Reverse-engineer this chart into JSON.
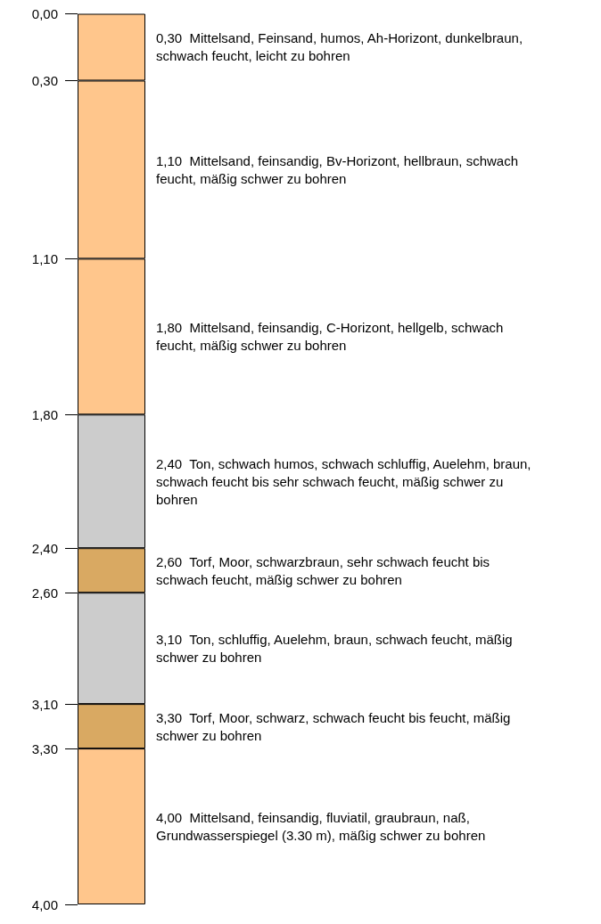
{
  "chart_data": {
    "type": "bar",
    "stacked": true,
    "categories": [
      null
    ],
    "ylim": [
      4,
      0
    ],
    "yticks": [
      {
        "value": 0,
        "label": "0,00"
      },
      {
        "value": 0.3,
        "label": "0,30"
      },
      {
        "value": 1.1,
        "label": "1,10"
      },
      {
        "value": 1.8,
        "label": "1,80"
      },
      {
        "value": 2.4,
        "label": "2,40"
      },
      {
        "value": 2.6,
        "label": "2,60"
      },
      {
        "value": 3.1,
        "label": "3,10"
      },
      {
        "value": 3.3,
        "label": "3,30"
      },
      {
        "value": 4,
        "label": "4,00"
      }
    ],
    "tick_labels": "y",
    "grid": false,
    "legend": false,
    "series": [
      {
        "name": "0,30  Mittelsand, Feinsand, humos, Ah-Horizont, dunkelbraun, schwach feucht, leicht zu bohren",
        "color": "#ffc68c",
        "values": [
          0.3
        ]
      },
      {
        "name": "1,10  Mittelsand, feinsandig, Bv-Horizont, hellbraun, schwach feucht, mäßig schwer zu bohren",
        "color": "#ffc68c",
        "values": [
          0.8
        ]
      },
      {
        "name": "1,80  Mittelsand, feinsandig, C-Horizont, hellgelb, schwach feucht, mäßig schwer zu bohren",
        "color": "#ffc68c",
        "values": [
          0.7
        ]
      },
      {
        "name": "2,40  Ton, schwach humos, schwach schluffig, Auelehm, braun, schwach feucht bis sehr schwach feucht, mäßig schwer zu bohren",
        "color": "#cccccc",
        "values": [
          0.6
        ]
      },
      {
        "name": "2,60  Torf, Moor, schwarzbraun, sehr schwach feucht bis schwach feucht, mäßig schwer zu bohren",
        "color": "#d9a962",
        "values": [
          0.2
        ]
      },
      {
        "name": "3,10  Ton, schluffig, Auelehm, braun, schwach feucht, mäßig schwer zu bohren",
        "color": "#cccccc",
        "values": [
          0.5
        ]
      },
      {
        "name": "3,30  Torf, Moor, schwarz, schwach feucht bis feucht, mäßig schwer zu bohren",
        "color": "#d9a962",
        "values": [
          0.2
        ]
      },
      {
        "name": "4,00  Mittelsand, feinsandig, fluviatil, graubraun, naß, Grundwasserspiegel (3.30 m), mäßig schwer zu bohren",
        "color": "#ffc68c",
        "values": [
          0.7
        ]
      }
    ]
  }
}
